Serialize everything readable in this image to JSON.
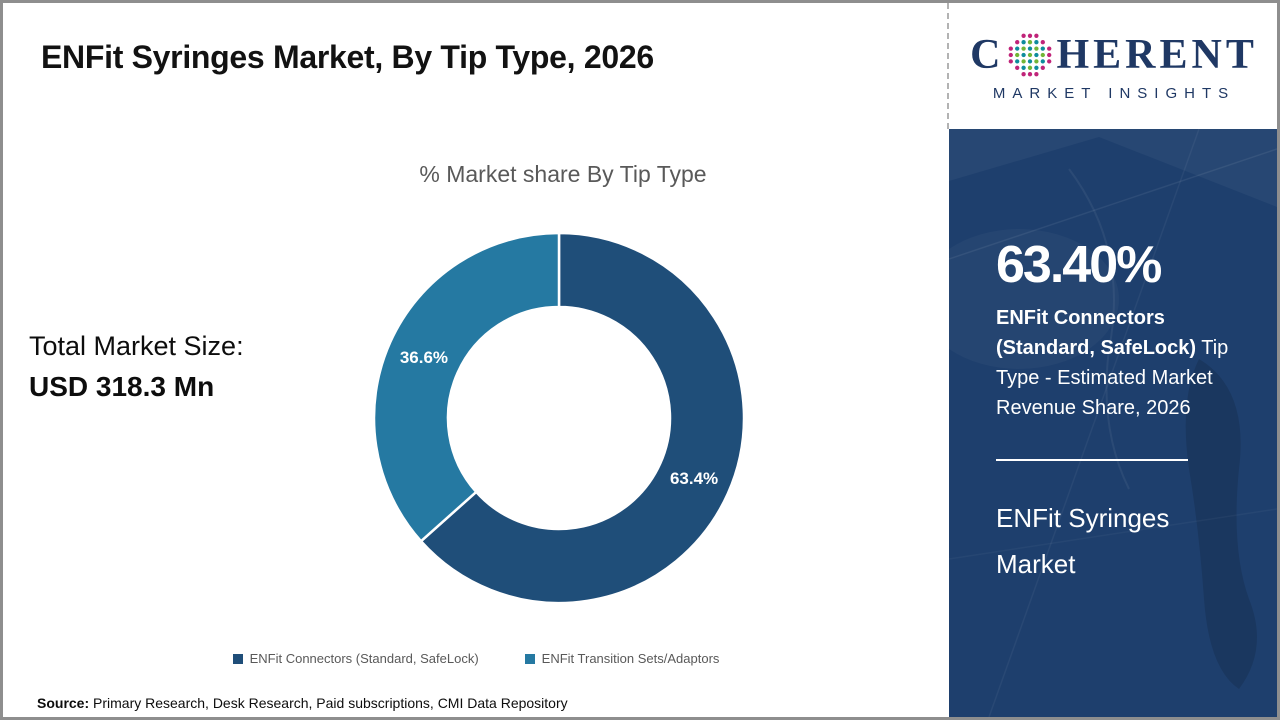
{
  "header": {
    "title": "ENFit Syringes Market, By Tip Type, 2026"
  },
  "logo": {
    "word_start": "C",
    "word_end": "HERENT",
    "tagline": "MARKET INSIGHTS",
    "navy": "#1f3864",
    "globe_dot_colors": {
      "rim": "#C02479",
      "teal": "#0E8C9C",
      "green": "#72B636"
    }
  },
  "main": {
    "total_label": "Total Market Size:",
    "total_value": "USD 318.3 Mn",
    "source_label": "Source:",
    "source_text": " Primary Research, Desk Research, Paid subscriptions, CMI Data Repository"
  },
  "chart_data": {
    "type": "pie",
    "donut": true,
    "title": "% Market share By Tip Type",
    "categories": [
      "ENFit Connectors (Standard, SafeLock)",
      "ENFit Transition Sets/Adaptors"
    ],
    "values": [
      63.4,
      36.6
    ],
    "labels": [
      "63.4%",
      "36.6%"
    ],
    "colors": [
      "#1F4E79",
      "#2579A2"
    ],
    "start_angle_deg": 0,
    "direction": "clockwise",
    "legend_position": "bottom",
    "label_color": "#ffffff"
  },
  "sidebar": {
    "bg_color": "#1e3f6d",
    "stat_value": "63.40%",
    "stat_bold": "ENFit Connectors (Standard, SafeLock)",
    "stat_rest": " Tip Type - Estimated Market Revenue Share, 2026",
    "market_name": "ENFit Syringes Market"
  }
}
